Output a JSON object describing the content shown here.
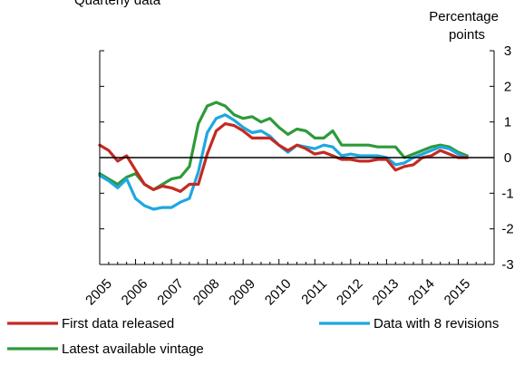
{
  "chart_data": {
    "type": "line",
    "subtitle": "Quarterly data",
    "ylabel": [
      "Percentage",
      "points"
    ],
    "ylim": [
      -3,
      3
    ],
    "yticks": [
      -3,
      -2,
      -1,
      0,
      1,
      2,
      3
    ],
    "ytick_labels": [
      "-3",
      "-2",
      "-1",
      "0",
      "1",
      "2",
      "3"
    ],
    "xlim": [
      2005,
      2016
    ],
    "x_tick_labels": [
      "2005",
      "2006",
      "2007",
      "2008",
      "2009",
      "2010",
      "2011",
      "2012",
      "2013",
      "2014",
      "2015"
    ],
    "legend_position": "bottom",
    "x_start": 2005,
    "x_step": 0.25,
    "series": [
      {
        "name": "Latest available vintage",
        "color": "#2e9a3a",
        "values": [
          -0.45,
          -0.6,
          -0.75,
          -0.55,
          -0.45,
          -0.75,
          -0.9,
          -0.75,
          -0.6,
          -0.55,
          -0.25,
          0.95,
          1.45,
          1.55,
          1.45,
          1.2,
          1.1,
          1.15,
          1.0,
          1.1,
          0.85,
          0.65,
          0.8,
          0.75,
          0.55,
          0.55,
          0.75,
          0.35,
          0.35,
          0.35,
          0.35,
          0.3,
          0.3,
          0.3,
          0.0,
          0.1,
          0.2,
          0.3,
          0.35,
          0.3,
          0.15,
          0.05
        ]
      },
      {
        "name": "Data with 8 revisions",
        "color": "#1ea7e1",
        "values": [
          -0.5,
          -0.65,
          -0.85,
          -0.6,
          -1.15,
          -1.35,
          -1.45,
          -1.4,
          -1.4,
          -1.25,
          -1.15,
          -0.4,
          0.7,
          1.1,
          1.2,
          1.05,
          0.85,
          0.7,
          0.75,
          0.6,
          0.35,
          0.15,
          0.35,
          0.3,
          0.25,
          0.35,
          0.3,
          0.05,
          0.1,
          0.05,
          0.05,
          0.05,
          0.0,
          -0.2,
          -0.15,
          0.0,
          0.1,
          0.2,
          0.3,
          0.25,
          0.1,
          0.0
        ]
      },
      {
        "name": "First data released",
        "color": "#c42a22",
        "values": [
          0.35,
          0.2,
          -0.1,
          0.05,
          -0.35,
          -0.75,
          -0.9,
          -0.8,
          -0.85,
          -0.95,
          -0.75,
          -0.75,
          0.1,
          0.75,
          0.95,
          0.9,
          0.75,
          0.55,
          0.55,
          0.55,
          0.35,
          0.2,
          0.35,
          0.25,
          0.1,
          0.15,
          0.05,
          -0.05,
          -0.05,
          -0.1,
          -0.1,
          -0.05,
          -0.05,
          -0.35,
          -0.25,
          -0.2,
          0.0,
          0.05,
          0.2,
          0.1,
          0.0,
          0.0
        ]
      }
    ],
    "legend": [
      {
        "label": "First data released",
        "color": "#c42a22"
      },
      {
        "label": "Data with 8 revisions",
        "color": "#1ea7e1"
      },
      {
        "label": "Latest available vintage",
        "color": "#2e9a3a"
      }
    ]
  }
}
